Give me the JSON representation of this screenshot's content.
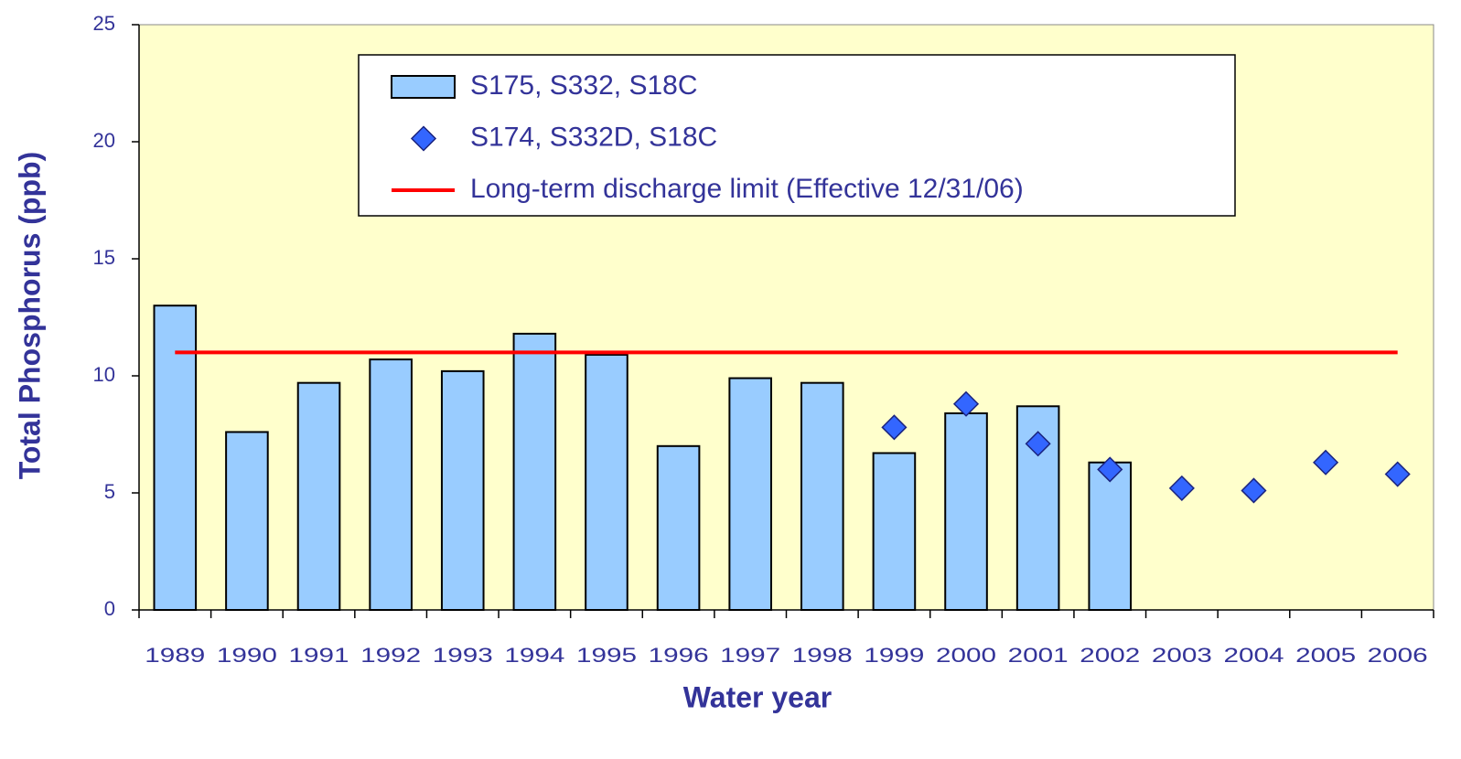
{
  "chart_data": {
    "type": "bar",
    "xlabel": "Water year",
    "ylabel": "Total Phosphorus (ppb)",
    "categories": [
      "1989",
      "1990",
      "1991",
      "1992",
      "1993",
      "1994",
      "1995",
      "1996",
      "1997",
      "1998",
      "1999",
      "2000",
      "2001",
      "2002",
      "2003",
      "2004",
      "2005",
      "2006"
    ],
    "series": [
      {
        "name": "S175, S332, S18C",
        "type": "bar",
        "color": "#99ccff",
        "values": [
          13.0,
          7.6,
          9.7,
          10.7,
          10.2,
          11.8,
          10.9,
          7.0,
          9.9,
          9.7,
          6.7,
          8.4,
          8.7,
          6.3,
          null,
          null,
          null,
          null
        ]
      },
      {
        "name": "S174, S332D, S18C",
        "type": "scatter",
        "color": "#3366ff",
        "values": [
          null,
          null,
          null,
          null,
          null,
          null,
          null,
          null,
          null,
          null,
          7.8,
          8.8,
          7.1,
          6.0,
          5.2,
          5.1,
          6.3,
          5.8
        ]
      },
      {
        "name": "Long-term discharge limit (Effective 12/31/06)",
        "type": "line",
        "color": "#ff0000",
        "value": 11
      }
    ],
    "ylim": [
      0,
      25
    ],
    "yticks": [
      0,
      5,
      10,
      15,
      20,
      25
    ],
    "background": "#ffffcc"
  }
}
